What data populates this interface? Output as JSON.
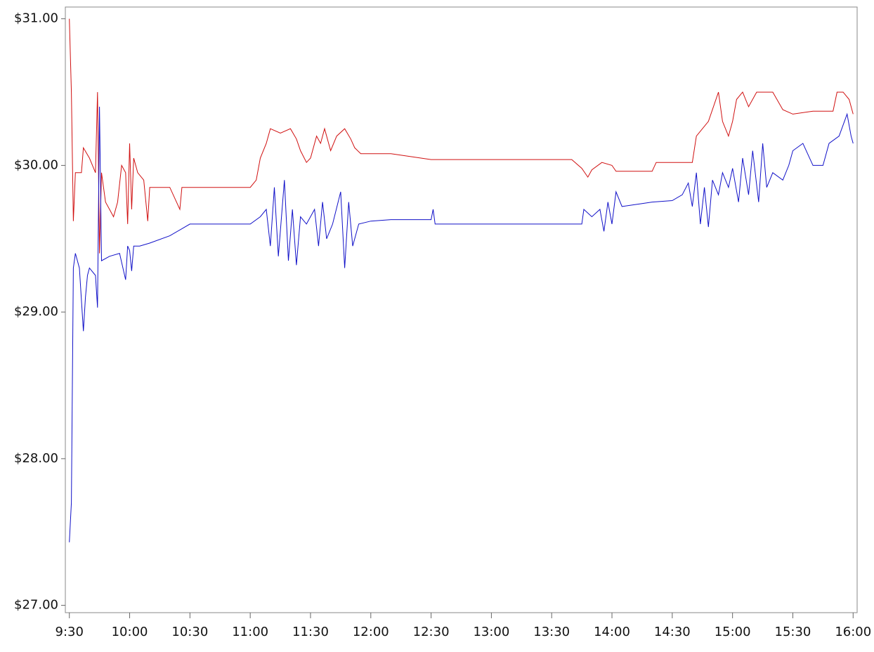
{
  "chart_data": {
    "type": "line",
    "series": [
      {
        "color": "#d01010",
        "x": [
          "9:30",
          "9:31",
          "9:32",
          "9:33",
          "9:36",
          "9:37",
          "9:40",
          "9:43",
          "9:44",
          "9:45",
          "9:46",
          "9:48",
          "9:50",
          "9:52",
          "9:54",
          "9:56",
          "9:58",
          "9:59",
          "10:00",
          "10:01",
          "10:02",
          "10:04",
          "10:07",
          "10:09",
          "10:10",
          "10:20",
          "10:25",
          "10:26",
          "11:00",
          "11:03",
          "11:05",
          "11:08",
          "11:10",
          "11:15",
          "11:20",
          "11:23",
          "11:25",
          "11:28",
          "11:30",
          "11:33",
          "11:35",
          "11:37",
          "11:40",
          "11:43",
          "11:47",
          "11:50",
          "11:52",
          "11:55",
          "12:00",
          "12:10",
          "12:30",
          "13:40",
          "13:45",
          "13:48",
          "13:50",
          "13:55",
          "14:00",
          "14:02",
          "14:20",
          "14:22",
          "14:40",
          "14:42",
          "14:48",
          "14:53",
          "14:55",
          "14:58",
          "15:00",
          "15:02",
          "15:05",
          "15:08",
          "15:12",
          "15:20",
          "15:25",
          "15:30",
          "15:40",
          "15:50",
          "15:52",
          "15:55",
          "15:58",
          "16:00"
        ],
        "values": [
          31.0,
          30.5,
          29.62,
          29.95,
          29.95,
          30.12,
          30.05,
          29.95,
          30.5,
          29.4,
          29.95,
          29.75,
          29.7,
          29.65,
          29.75,
          30.0,
          29.95,
          29.6,
          30.15,
          29.7,
          30.05,
          29.95,
          29.9,
          29.62,
          29.85,
          29.85,
          29.7,
          29.85,
          29.85,
          29.9,
          30.05,
          30.15,
          30.25,
          30.22,
          30.25,
          30.18,
          30.1,
          30.02,
          30.05,
          30.2,
          30.15,
          30.25,
          30.1,
          30.2,
          30.25,
          30.18,
          30.12,
          30.08,
          30.08,
          30.08,
          30.04,
          30.04,
          29.98,
          29.92,
          29.97,
          30.02,
          30.0,
          29.96,
          29.96,
          30.02,
          30.02,
          30.2,
          30.3,
          30.5,
          30.3,
          30.2,
          30.3,
          30.45,
          30.5,
          30.4,
          30.5,
          30.5,
          30.38,
          30.35,
          30.37,
          30.37,
          30.5,
          30.5,
          30.45,
          30.35
        ]
      },
      {
        "color": "#1010c8",
        "x": [
          "9:30",
          "9:31",
          "9:32",
          "9:33",
          "9:35",
          "9:37",
          "9:38",
          "9:39",
          "9:40",
          "9:43",
          "9:44",
          "9:45",
          "9:46",
          "9:50",
          "9:55",
          "9:58",
          "9:59",
          "10:00",
          "10:01",
          "10:02",
          "10:05",
          "10:10",
          "10:20",
          "10:30",
          "11:00",
          "11:05",
          "11:08",
          "11:10",
          "11:12",
          "11:14",
          "11:17",
          "11:19",
          "11:21",
          "11:23",
          "11:25",
          "11:28",
          "11:32",
          "11:34",
          "11:36",
          "11:38",
          "11:41",
          "11:45",
          "11:47",
          "11:49",
          "11:51",
          "11:54",
          "12:00",
          "12:10",
          "12:30",
          "12:31",
          "12:32",
          "13:45",
          "13:46",
          "13:50",
          "13:54",
          "13:56",
          "13:58",
          "14:00",
          "14:02",
          "14:05",
          "14:15",
          "14:20",
          "14:30",
          "14:35",
          "14:38",
          "14:40",
          "14:42",
          "14:44",
          "14:46",
          "14:48",
          "14:50",
          "14:53",
          "14:55",
          "14:58",
          "15:00",
          "15:03",
          "15:05",
          "15:08",
          "15:10",
          "15:13",
          "15:15",
          "15:17",
          "15:20",
          "15:25",
          "15:28",
          "15:30",
          "15:35",
          "15:40",
          "15:45",
          "15:48",
          "15:53",
          "15:57",
          "15:59",
          "16:00"
        ],
        "values": [
          27.43,
          27.7,
          29.3,
          29.4,
          29.3,
          28.87,
          29.1,
          29.25,
          29.3,
          29.25,
          29.03,
          30.4,
          29.35,
          29.38,
          29.4,
          29.22,
          29.45,
          29.42,
          29.28,
          29.45,
          29.45,
          29.47,
          29.52,
          29.6,
          29.6,
          29.65,
          29.7,
          29.45,
          29.85,
          29.38,
          29.9,
          29.35,
          29.7,
          29.32,
          29.65,
          29.6,
          29.7,
          29.45,
          29.75,
          29.5,
          29.6,
          29.82,
          29.3,
          29.75,
          29.45,
          29.6,
          29.62,
          29.63,
          29.63,
          29.7,
          29.6,
          29.6,
          29.7,
          29.65,
          29.7,
          29.55,
          29.75,
          29.6,
          29.82,
          29.72,
          29.74,
          29.75,
          29.76,
          29.8,
          29.88,
          29.72,
          29.95,
          29.6,
          29.85,
          29.58,
          29.9,
          29.8,
          29.95,
          29.85,
          29.98,
          29.75,
          30.05,
          29.8,
          30.1,
          29.75,
          30.15,
          29.85,
          29.95,
          29.9,
          30.0,
          30.1,
          30.15,
          30.0,
          30.0,
          30.15,
          30.2,
          30.35,
          30.2,
          30.15
        ]
      }
    ],
    "xlim": [
      "9:28",
      "16:02"
    ],
    "xticks": [
      "9:30",
      "10:00",
      "10:30",
      "11:00",
      "11:30",
      "12:00",
      "12:30",
      "13:00",
      "13:30",
      "14:00",
      "14:30",
      "15:00",
      "15:30",
      "16:00"
    ],
    "ylim": [
      26.95,
      31.08
    ],
    "yticks": [
      {
        "value": 27,
        "label": "$27.00"
      },
      {
        "value": 28,
        "label": "$28.00"
      },
      {
        "value": 29,
        "label": "$29.00"
      },
      {
        "value": 30,
        "label": "$30.00"
      },
      {
        "value": 31,
        "label": "$31.00"
      }
    ]
  }
}
